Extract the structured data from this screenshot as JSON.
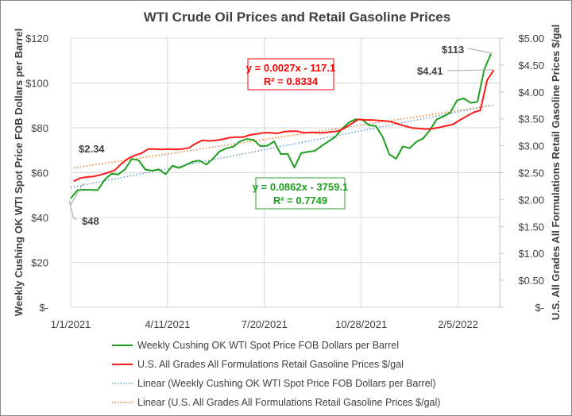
{
  "chart_data": {
    "type": "line",
    "title": "WTI Crude Oil Prices and Retail Gasoline Prices",
    "ylabel": "Weekly Cushing OK WTI Spot Price FOB Dollars per Barrel",
    "y2label": "U.S. All Grades All Formulations Retail Gasoline Prices $/gal",
    "ylim": [
      0,
      120
    ],
    "y2lim": [
      0,
      5
    ],
    "yticks": [
      "$-",
      "$20",
      "$40",
      "$60",
      "$80",
      "$100",
      "$120"
    ],
    "y2ticks": [
      "$-",
      "$0.50",
      "$1.00",
      "$1.50",
      "$2.00",
      "$2.50",
      "$3.00",
      "$3.50",
      "$4.00",
      "$4.50",
      "$5.00"
    ],
    "xticks": [
      "1/1/2021",
      "4/11/2021",
      "7/20/2021",
      "10/28/2021",
      "2/5/2022"
    ],
    "xlim_days_from_2021_01_01": [
      0,
      443
    ],
    "xtick_days": [
      0,
      100,
      200,
      300,
      400
    ],
    "grid": true,
    "legend_position": "bottom",
    "series": [
      {
        "name": "Weekly Cushing OK WTI Spot Price FOB Dollars per Barrel",
        "axis": "left",
        "color": "#1e9e1e",
        "start_day": 0,
        "interval_days": 7,
        "values": [
          48.5,
          52.2,
          52.4,
          52.3,
          52.2,
          56.8,
          59.5,
          59.2,
          61.5,
          66.1,
          65.6,
          61.4,
          60.9,
          61.5,
          59.3,
          63.1,
          62.1,
          63.5,
          64.9,
          65.4,
          63.6,
          66.3,
          69.6,
          70.9,
          71.6,
          74,
          75,
          74.6,
          71.8,
          72,
          73.9,
          68.3,
          68.4,
          62.3,
          68.7,
          69.3,
          69.7,
          71.9,
          73.9,
          75.9,
          79.4,
          82.3,
          83.8,
          83.6,
          81.2,
          80.8,
          76.1,
          68.2,
          66.2,
          71.7,
          70.9,
          73.8,
          75.3,
          79,
          83.8,
          85.1,
          86.8,
          92.3,
          93.1,
          91.1,
          91.6,
          106,
          113
        ]
      },
      {
        "name": "U.S. All Grades All Formulations Retail Gasoline Prices $/gal",
        "axis": "right",
        "color": "#ff1a1a",
        "start_day": 3,
        "interval_days": 7,
        "values": [
          2.34,
          2.4,
          2.42,
          2.43,
          2.46,
          2.5,
          2.54,
          2.66,
          2.76,
          2.82,
          2.86,
          2.94,
          2.94,
          2.93,
          2.94,
          2.93,
          2.94,
          2.96,
          3.04,
          3.1,
          3.09,
          3.1,
          3.12,
          3.15,
          3.16,
          3.16,
          3.2,
          3.22,
          3.24,
          3.24,
          3.23,
          3.26,
          3.27,
          3.27,
          3.24,
          3.25,
          3.24,
          3.24,
          3.26,
          3.27,
          3.33,
          3.41,
          3.49,
          3.48,
          3.48,
          3.47,
          3.46,
          3.44,
          3.4,
          3.36,
          3.33,
          3.32,
          3.31,
          3.32,
          3.34,
          3.37,
          3.4,
          3.48,
          3.55,
          3.62,
          3.66,
          4.22,
          4.41
        ]
      }
    ],
    "trendlines": [
      {
        "name": "Linear (Weekly Cushing OK WTI Spot Price FOB Dollars per Barrel)",
        "of": 0,
        "color": "#5b9bd5",
        "equation": "y = 0.0862x - 3759.1",
        "r2": "R² = 0.7749",
        "box_color": "#2ca02c"
      },
      {
        "name": "Linear (U.S. All Grades All Formulations Retail Gasoline Prices $/gal)",
        "of": 1,
        "color": "#ed7d31",
        "equation": "y = 0.0027x - 117.1",
        "r2": "R² = 0.8334",
        "box_color": "#ff0000"
      }
    ],
    "annotations": {
      "wti_start": "$48",
      "gas_start": "$2.34",
      "wti_end": "$113",
      "gas_end": "$4.41"
    }
  }
}
